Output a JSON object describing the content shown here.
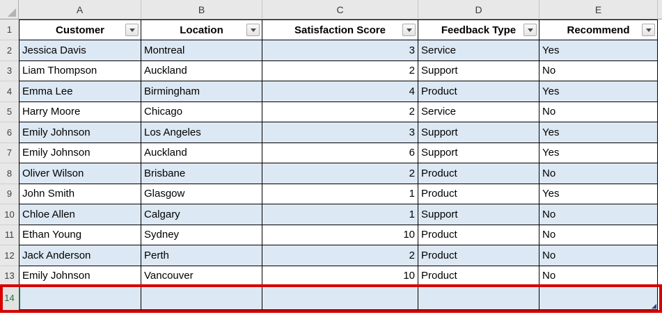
{
  "columns": {
    "letters": [
      "A",
      "B",
      "C",
      "D",
      "E"
    ]
  },
  "header_row": {
    "number": "1",
    "cells": [
      "Customer",
      "Location",
      "Satisfaction Score",
      "Feedback Type",
      "Recommend"
    ]
  },
  "rows": [
    {
      "number": "2",
      "cells": [
        "Jessica Davis",
        "Montreal",
        "3",
        "Service",
        "Yes"
      ]
    },
    {
      "number": "3",
      "cells": [
        "Liam Thompson",
        "Auckland",
        "2",
        "Support",
        "No"
      ]
    },
    {
      "number": "4",
      "cells": [
        "Emma Lee",
        "Birmingham",
        "4",
        "Product",
        "Yes"
      ]
    },
    {
      "number": "5",
      "cells": [
        "Harry Moore",
        "Chicago",
        "2",
        "Service",
        "No"
      ]
    },
    {
      "number": "6",
      "cells": [
        "Emily Johnson",
        "Los Angeles",
        "3",
        "Support",
        "Yes"
      ]
    },
    {
      "number": "7",
      "cells": [
        "Emily Johnson",
        "Auckland",
        "6",
        "Support",
        "Yes"
      ]
    },
    {
      "number": "8",
      "cells": [
        "Oliver Wilson",
        "Brisbane",
        "2",
        "Product",
        "No"
      ]
    },
    {
      "number": "9",
      "cells": [
        "John Smith",
        "Glasgow",
        "1",
        "Product",
        "Yes"
      ]
    },
    {
      "number": "10",
      "cells": [
        "Chloe Allen",
        "Calgary",
        "1",
        "Support",
        "No"
      ]
    },
    {
      "number": "11",
      "cells": [
        "Ethan Young",
        "Sydney",
        "10",
        "Product",
        "No"
      ]
    },
    {
      "number": "12",
      "cells": [
        "Jack Anderson",
        "Perth",
        "2",
        "Product",
        "No"
      ]
    },
    {
      "number": "13",
      "cells": [
        "Emily Johnson",
        "Vancouver",
        "10",
        "Product",
        "No"
      ]
    }
  ],
  "insert_row": {
    "number": "14",
    "cells": [
      "",
      "",
      "",
      "",
      ""
    ]
  },
  "icons": {
    "filter_dropdown": "chevron-down",
    "select_all_corner": "corner-triangle",
    "table_resize_handle": "resize-triangle"
  },
  "colors": {
    "band_blue": "#DCE8F3",
    "annotation_red": "#D60000",
    "selected_row_green": "#1F7246",
    "resize_handle_navy": "#334A77"
  }
}
